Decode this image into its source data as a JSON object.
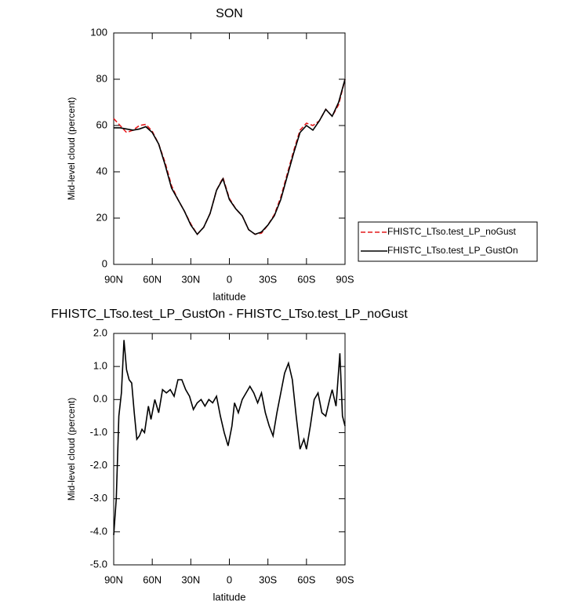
{
  "chart_data": [
    {
      "type": "line",
      "title": "SON",
      "xlabel": "latitude",
      "ylabel": "Mid-level cloud (percent)",
      "x": [
        90,
        85,
        80,
        75,
        70,
        65,
        60,
        55,
        50,
        45,
        40,
        35,
        30,
        25,
        20,
        15,
        10,
        5,
        0,
        -5,
        -10,
        -15,
        -20,
        -25,
        -30,
        -35,
        -40,
        -45,
        -50,
        -55,
        -60,
        -65,
        -70,
        -75,
        -80,
        -85,
        -90
      ],
      "series": [
        {
          "name": "FHISTC_LTso.test_LP_noGust",
          "color": "#e41a1c",
          "style": "dashed",
          "values": [
            63,
            60,
            57,
            58,
            60,
            60.5,
            57.5,
            52,
            44,
            34,
            28,
            23,
            17.5,
            13,
            16,
            22,
            32,
            37.5,
            28.5,
            24,
            21,
            15,
            13,
            13.5,
            17,
            21.5,
            29,
            39,
            49,
            58,
            61,
            60,
            62,
            67,
            64,
            69,
            80
          ]
        },
        {
          "name": "FHISTC_LTso.test_LP_GustOn",
          "color": "#000000",
          "style": "solid",
          "values": [
            59,
            59,
            58.5,
            58,
            58.5,
            59.5,
            57,
            52,
            43,
            33,
            28,
            23,
            17,
            13,
            16,
            22,
            32,
            37,
            28,
            24,
            21,
            15,
            13,
            14,
            17,
            21,
            28,
            38,
            48,
            57,
            60,
            58,
            62,
            67,
            64,
            70,
            80
          ]
        }
      ],
      "xlim": [
        90,
        -90
      ],
      "xticks": [
        {
          "value": 90,
          "label": "90N"
        },
        {
          "value": 60,
          "label": "60N"
        },
        {
          "value": 30,
          "label": "30N"
        },
        0,
        {
          "value": -30,
          "label": "30S"
        },
        {
          "value": -60,
          "label": "60S"
        },
        {
          "value": -90,
          "label": "90S"
        }
      ],
      "ylim": [
        0,
        100
      ],
      "yticks": [
        0,
        20,
        40,
        60,
        80,
        100
      ],
      "legend": "right"
    },
    {
      "type": "line",
      "title": "FHISTC_LTso.test_LP_GustOn - FHISTC_LTso.test_LP_noGust",
      "xlabel": "latitude",
      "ylabel": "Mid-level cloud (percent)",
      "x": [
        90,
        88,
        86,
        84,
        82,
        80,
        78,
        76,
        74,
        72,
        70,
        68,
        66,
        63,
        61,
        58,
        55,
        52,
        49,
        46,
        43,
        40,
        37,
        34,
        31,
        28,
        25,
        22,
        19,
        16,
        13,
        10,
        7,
        4,
        1,
        -2,
        -4,
        -7,
        -10,
        -13,
        -16,
        -19,
        -22,
        -25,
        -28,
        -31,
        -34,
        -37,
        -40,
        -43,
        -46,
        -49,
        -52,
        -55,
        -58,
        -60,
        -63,
        -66,
        -69,
        -72,
        -75,
        -78,
        -80,
        -83,
        -86,
        -88,
        -90
      ],
      "series": [
        {
          "color": "#000000",
          "style": "solid",
          "values": [
            -4.1,
            -3.0,
            -0.5,
            0.2,
            1.8,
            0.9,
            0.6,
            0.5,
            -0.4,
            -1.2,
            -1.1,
            -0.9,
            -1.0,
            -0.2,
            -0.6,
            0.0,
            -0.4,
            0.3,
            0.2,
            0.3,
            0.1,
            0.6,
            0.6,
            0.3,
            0.1,
            -0.3,
            -0.1,
            0.0,
            -0.2,
            0.0,
            -0.1,
            0.1,
            -0.5,
            -1.0,
            -1.4,
            -0.8,
            -0.1,
            -0.4,
            0.0,
            0.2,
            0.4,
            0.2,
            -0.1,
            0.2,
            -0.4,
            -0.8,
            -1.1,
            -0.4,
            0.2,
            0.8,
            1.1,
            0.6,
            -0.5,
            -1.5,
            -1.2,
            -1.5,
            -0.8,
            0.0,
            0.2,
            -0.4,
            -0.5,
            0.0,
            0.3,
            -0.2,
            1.4,
            -0.5,
            -0.8
          ]
        }
      ],
      "xlim": [
        90,
        -90
      ],
      "xticks": [
        {
          "value": 90,
          "label": "90N"
        },
        {
          "value": 60,
          "label": "60N"
        },
        {
          "value": 30,
          "label": "30N"
        },
        0,
        {
          "value": -30,
          "label": "30S"
        },
        {
          "value": -60,
          "label": "60S"
        },
        {
          "value": -90,
          "label": "90S"
        }
      ],
      "ylim": [
        -5,
        2
      ],
      "yticks": [
        {
          "value": -5,
          "label": "-5.0"
        },
        {
          "value": -4,
          "label": "-4.0"
        },
        {
          "value": -3,
          "label": "-3.0"
        },
        {
          "value": -2,
          "label": "-2.0"
        },
        {
          "value": -1,
          "label": "-1.0"
        },
        {
          "value": 0,
          "label": "0.0"
        },
        {
          "value": 1,
          "label": "1.0"
        },
        {
          "value": 2,
          "label": "2.0"
        }
      ]
    }
  ]
}
